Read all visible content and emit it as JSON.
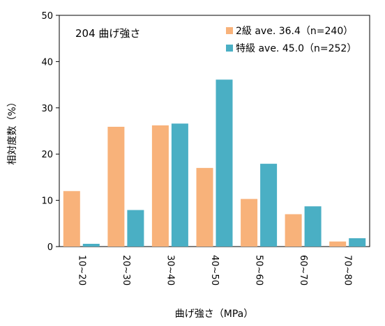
{
  "chart_data": {
    "type": "bar",
    "title": "204 曲げ強さ",
    "xlabel": "曲げ強さ（MPa）",
    "ylabel": "相対度数（%）",
    "ylim": [
      0,
      50
    ],
    "yticks": [
      0,
      10,
      20,
      30,
      40,
      50
    ],
    "categories": [
      "10~20",
      "20~30",
      "30~40",
      "40~50",
      "50~60",
      "60~70",
      "70~80"
    ],
    "series": [
      {
        "name": "2級 ave. 36.4（n=240）",
        "color": "#f8b27a",
        "values": [
          12.0,
          25.9,
          26.2,
          17.0,
          10.3,
          7.0,
          1.1
        ]
      },
      {
        "name": "特級 ave. 45.0（n=252）",
        "color": "#4aafc4",
        "values": [
          0.6,
          7.9,
          26.6,
          36.1,
          17.9,
          8.7,
          1.8
        ]
      }
    ],
    "grid": false,
    "legend_position": "top-right"
  }
}
